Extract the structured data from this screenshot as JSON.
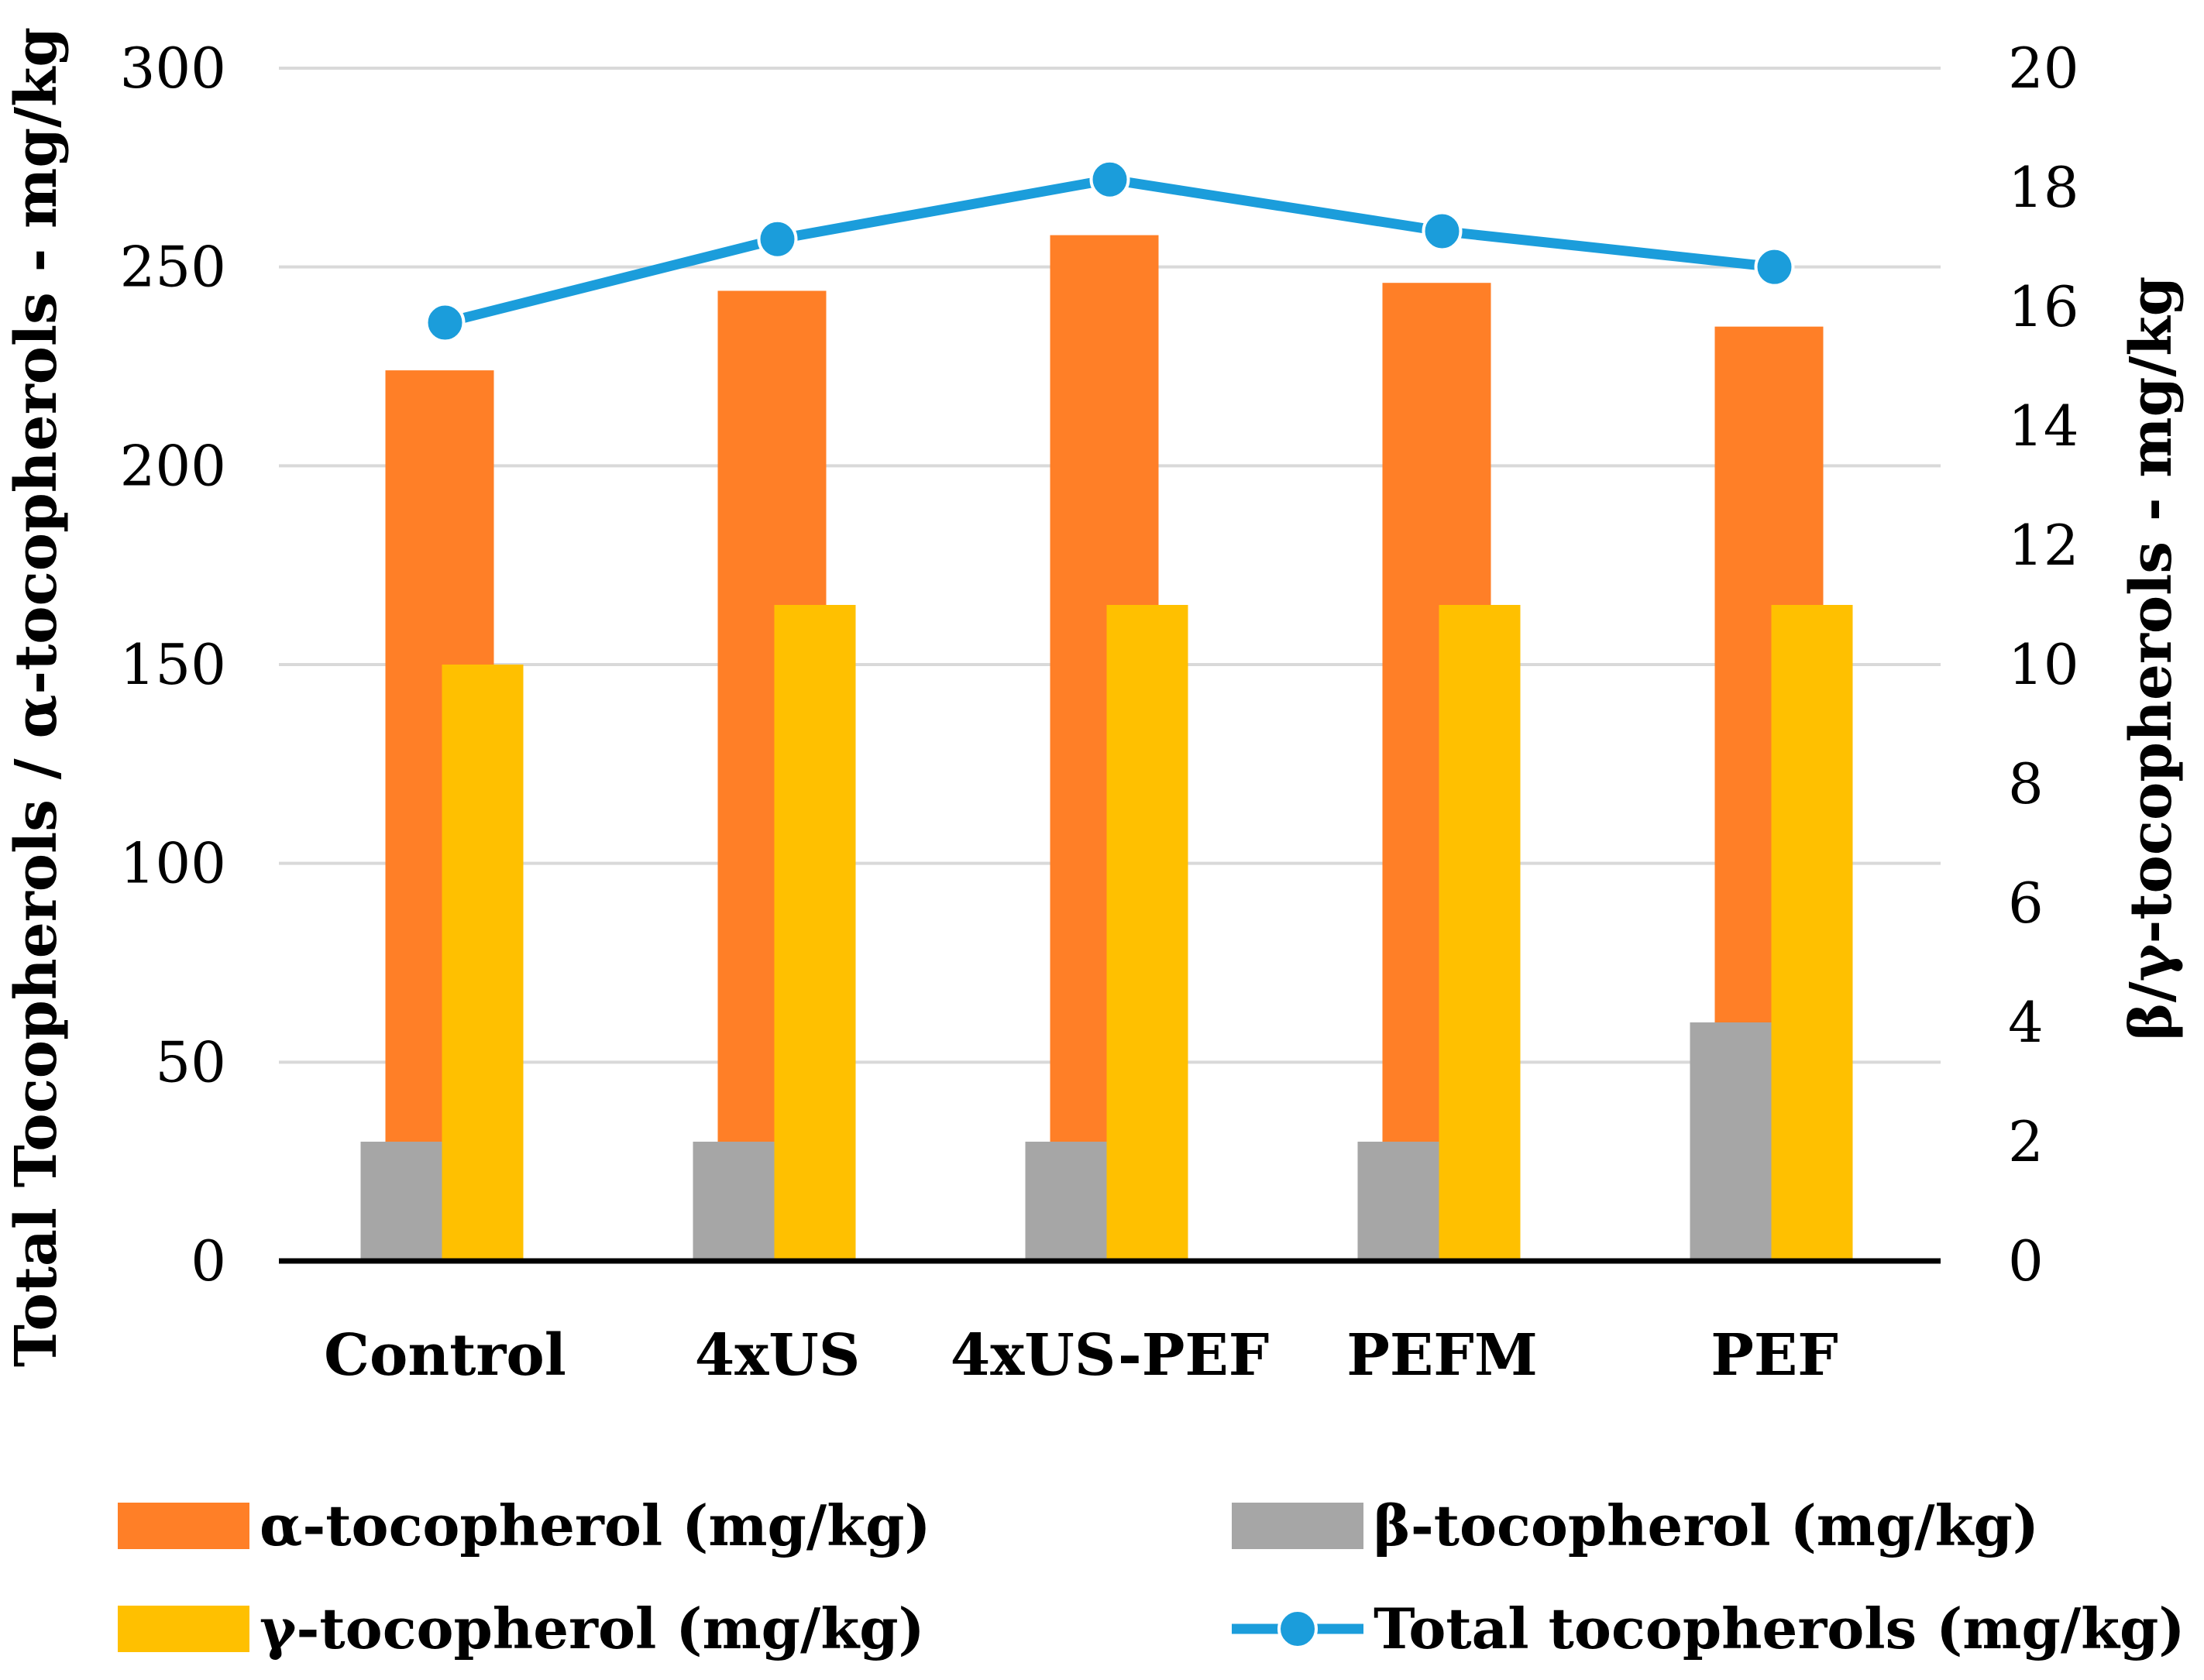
{
  "chart_data": {
    "type": "bar",
    "categories": [
      "Control",
      "4xUS",
      "4xUS-PEF",
      "PEFM",
      "PEF"
    ],
    "series": [
      {
        "name": "α-tocopherol (mg/kg)",
        "axis": "left",
        "kind": "bar",
        "color": "#FF7F27",
        "values": [
          224,
          244,
          258,
          246,
          235
        ]
      },
      {
        "name": "β-tocopherol (mg/kg)",
        "axis": "right",
        "kind": "bar",
        "color": "#A6A6A6",
        "values": [
          2,
          2,
          2,
          2,
          4
        ]
      },
      {
        "name": "γ-tocopherol (mg/kg)",
        "axis": "right",
        "kind": "bar",
        "color": "#FFC000",
        "values": [
          10,
          11,
          11,
          11,
          11
        ]
      },
      {
        "name": "Total tocopherols (mg/kg)",
        "axis": "left",
        "kind": "line",
        "color": "#1B9DDB",
        "values": [
          236,
          257,
          272,
          259,
          250
        ]
      }
    ],
    "left_axis": {
      "label": "Total Tocopherols / α-tocopherols - mg/kg",
      "ylim": [
        0,
        300
      ],
      "ticks": [
        0,
        50,
        100,
        150,
        200,
        250,
        300
      ]
    },
    "right_axis": {
      "label": "β/γ-tocopherols - mg/kg",
      "ylim": [
        0,
        20
      ],
      "ticks": [
        0,
        2,
        4,
        6,
        8,
        10,
        12,
        14,
        16,
        18,
        20
      ]
    },
    "legend_position": "bottom",
    "grid": true
  }
}
